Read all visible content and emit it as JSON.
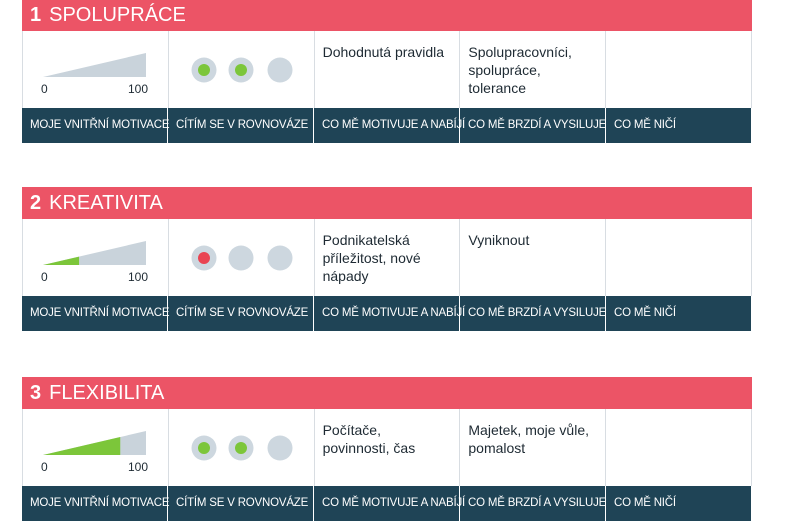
{
  "columns": [
    "MOJE VNITŘNÍ MOTIVACE",
    "CÍTÍM SE V ROVNOVÁZE",
    "CO MĚ MOTIVUJE A NABÍJÍ",
    "CO MĚ BRZDÍ A VYSILUJE",
    "CO MĚ NIČÍ"
  ],
  "gauge": {
    "min": 0,
    "max": 100
  },
  "sections": [
    {
      "number": "1",
      "title": "SPOLUPRÁCE",
      "motivation": 0,
      "balance_colors": [
        "#7cc63a",
        "#7cc63a",
        "#cdd7df"
      ],
      "motivates": "Dohodnutá pravidla",
      "hinders": "Spolupracovníci, spolupráce, tolerance"
    },
    {
      "number": "2",
      "title": "KREATIVITA",
      "motivation": 35,
      "balance_colors": [
        "#e94452",
        "#cdd7df",
        "#cdd7df"
      ],
      "motivates": "Podnikatelská příležitost, nové nápady",
      "hinders": "Vyniknout"
    },
    {
      "number": "3",
      "title": "FLEXIBILITA",
      "motivation": 75,
      "balance_colors": [
        "#7cc63a",
        "#7cc63a",
        "#cdd7df"
      ],
      "motivates": "Počítače, povinnosti, čas",
      "hinders": "Majetek, moje vůle, pomalost"
    }
  ]
}
